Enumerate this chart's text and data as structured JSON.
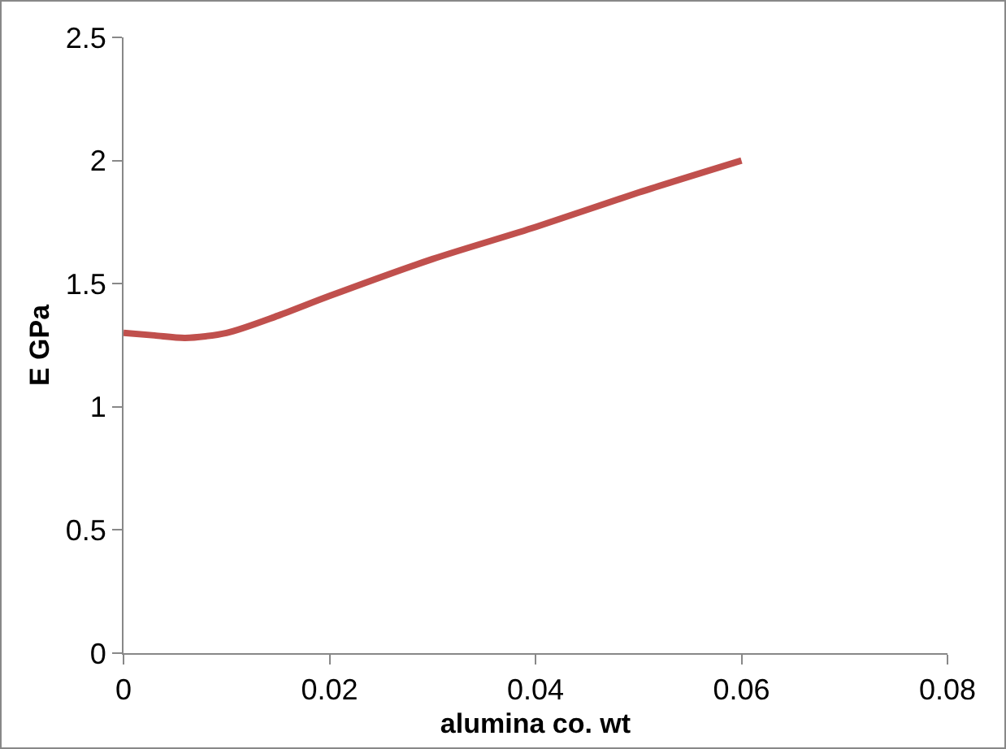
{
  "chart_data": {
    "type": "line",
    "xlabel": "alumina co. wt",
    "ylabel": "E GPa",
    "x": [
      0,
      0.003,
      0.006,
      0.01,
      0.015,
      0.02,
      0.03,
      0.04,
      0.05,
      0.06
    ],
    "series": [
      {
        "color": "#c0504d",
        "values": [
          1.3,
          1.29,
          1.28,
          1.3,
          1.37,
          1.45,
          1.6,
          1.73,
          1.87,
          2.0
        ]
      }
    ],
    "xlim": [
      0,
      0.08
    ],
    "xticks": [
      0,
      0.02,
      0.04,
      0.06,
      0.08
    ],
    "ylim": [
      0,
      2.5
    ],
    "yticks": [
      0,
      0.5,
      1,
      1.5,
      2,
      2.5
    ],
    "grid": false,
    "legend": false,
    "marker": "none",
    "line_style": "solid"
  }
}
